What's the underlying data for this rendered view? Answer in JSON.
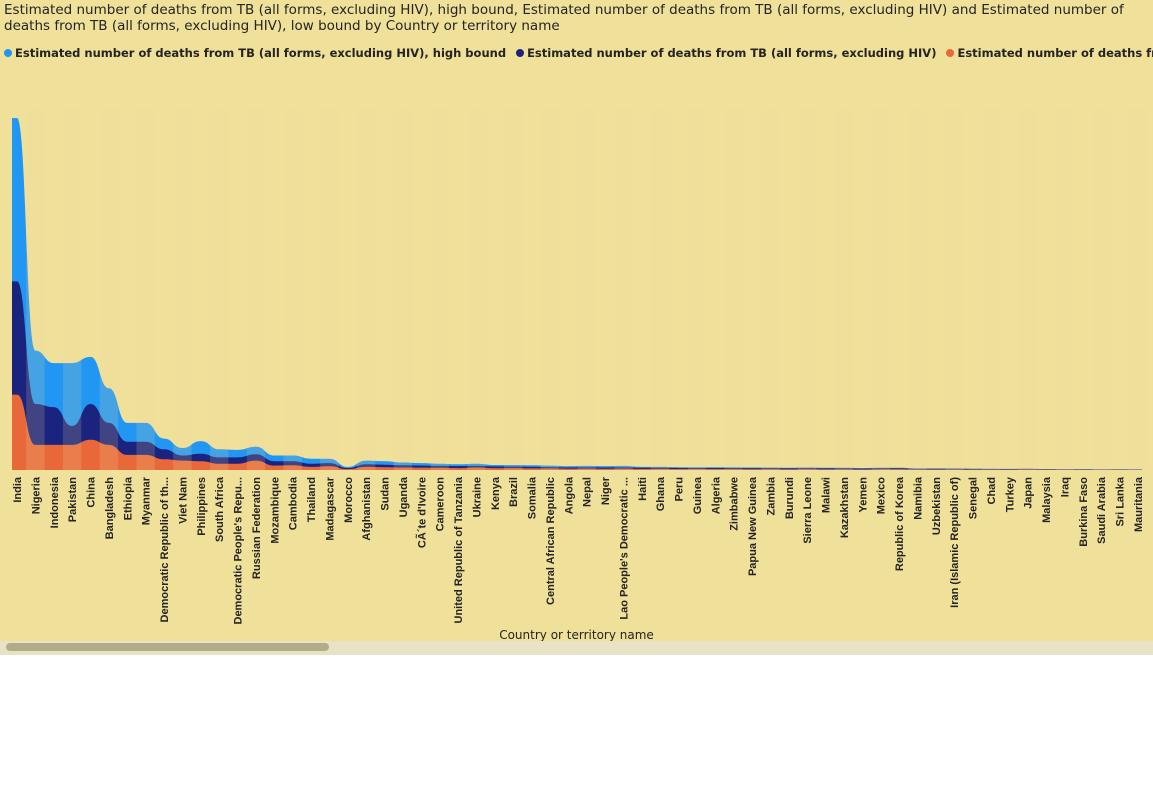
{
  "chart_data": {
    "type": "area",
    "title": "Estimated number of deaths from TB (all forms, excluding HIV), high bound, Estimated number of deaths from TB (all forms, excluding HIV) and Estimated number of deaths from TB (all forms, excluding HIV), low bound by Country or territory name",
    "xlabel": "Country or territory name",
    "ylabel": "",
    "ylim": [
      0,
      560000
    ],
    "grid": false,
    "legend_position": "top-left",
    "categories": [
      "India",
      "Nigeria",
      "Indonesia",
      "Pakistan",
      "China",
      "Bangladesh",
      "Ethiopia",
      "Myanmar",
      "Democratic Republic of th...",
      "Viet Nam",
      "Philippines",
      "South Africa",
      "Democratic People's Repu...",
      "Russian Federation",
      "Mozambique",
      "Cambodia",
      "Thailand",
      "Madagascar",
      "Morocco",
      "Afghanistan",
      "Sudan",
      "Uganda",
      "CÃ´te d'Ivoire",
      "Cameroon",
      "United Republic of Tanzania",
      "Ukraine",
      "Kenya",
      "Brazil",
      "Somalia",
      "Central African Republic",
      "Angola",
      "Nepal",
      "Niger",
      "Lao People's Democratic ...",
      "Haiti",
      "Ghana",
      "Peru",
      "Guinea",
      "Algeria",
      "Zimbabwe",
      "Papua New Guinea",
      "Zambia",
      "Burundi",
      "Sierra Leone",
      "Malawi",
      "Kazakhstan",
      "Yemen",
      "Mexico",
      "Republic of Korea",
      "Namibia",
      "Uzbekistan",
      "Iran (Islamic Republic of)",
      "Senegal",
      "Chad",
      "Turkey",
      "Japan",
      "Malaysia",
      "Iraq",
      "Burkina Faso",
      "Saudi Arabia",
      "Sri Lanka",
      "Mauritania"
    ],
    "series": [
      {
        "name": "Estimated number of deaths from TB (all forms, excluding HIV), high bound",
        "color": "#2196f3",
        "values": [
          560000,
          190000,
          170000,
          170000,
          180000,
          130000,
          75000,
          75000,
          50000,
          35000,
          46000,
          33000,
          32000,
          37000,
          23000,
          23000,
          18000,
          18000,
          5000,
          15000,
          14000,
          12000,
          11000,
          10000,
          9000,
          10000,
          8000,
          8000,
          7500,
          7000,
          6000,
          6500,
          6000,
          6500,
          5000,
          5000,
          4500,
          4500,
          4500,
          4500,
          4000,
          4000,
          3500,
          4000,
          3500,
          3500,
          3000,
          3500,
          3500,
          2500,
          2500,
          2500,
          2200,
          2000,
          1800,
          2200,
          1500,
          1300,
          1300,
          1200,
          1200,
          1200
        ]
      },
      {
        "name": "Estimated number of deaths from TB (all forms, excluding HIV)",
        "color": "#1a237e",
        "values": [
          300000,
          105000,
          100000,
          70000,
          105000,
          75000,
          45000,
          45000,
          33000,
          23000,
          26000,
          20000,
          20000,
          25000,
          14000,
          14000,
          10000,
          11000,
          3000,
          9000,
          8500,
          7500,
          7000,
          6500,
          6000,
          6500,
          5500,
          5500,
          5000,
          4500,
          4000,
          4200,
          4000,
          4200,
          3500,
          3500,
          3000,
          3000,
          3000,
          3000,
          2800,
          2800,
          2500,
          2800,
          2500,
          2500,
          2000,
          2500,
          2500,
          1800,
          1800,
          1800,
          1500,
          1400,
          1300,
          1600,
          1100,
          900,
          900,
          800,
          800,
          800
        ]
      },
      {
        "name": "Estimated number of deaths from TB (all forms, excluding HIV), low bound",
        "color": "#e8683a",
        "values": [
          120000,
          40000,
          40000,
          40000,
          48000,
          40000,
          24000,
          24000,
          17000,
          15000,
          14000,
          10000,
          10000,
          15000,
          7000,
          7500,
          5000,
          6000,
          1500,
          5000,
          4500,
          4000,
          3800,
          3500,
          3000,
          4000,
          3000,
          3000,
          2800,
          2500,
          2200,
          2300,
          2100,
          2300,
          1800,
          1800,
          1600,
          1600,
          1600,
          1500,
          1400,
          1400,
          1300,
          1400,
          1300,
          1300,
          1000,
          1300,
          1400,
          900,
          900,
          900,
          800,
          700,
          700,
          900,
          600,
          500,
          500,
          400,
          400,
          400
        ]
      }
    ]
  },
  "legend": {
    "items": [
      {
        "label": "Estimated number of deaths from TB (all forms, excluding HIV), high bound",
        "color": "#2196f3"
      },
      {
        "label": "Estimated number of deaths from TB (all forms, excluding HIV)",
        "color": "#1a237e"
      },
      {
        "label": "Estimated number of deaths from TB (all forms, exc...",
        "color": "#e8683a"
      }
    ]
  },
  "background_color": "#efe09a"
}
